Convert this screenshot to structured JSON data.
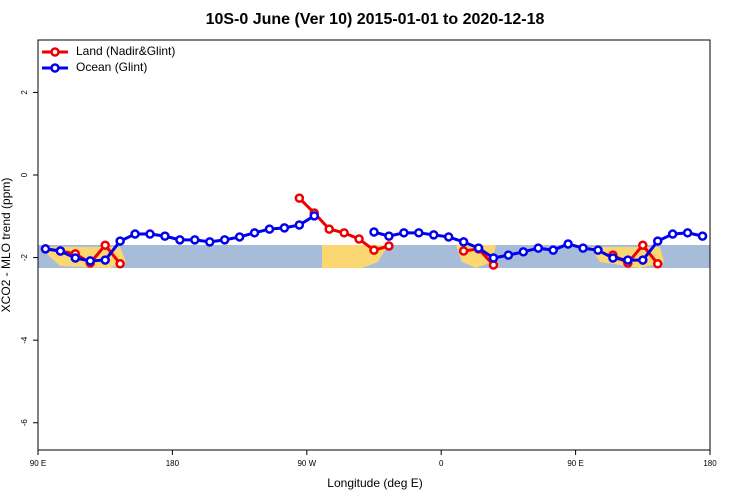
{
  "chart_data": {
    "type": "line",
    "title": "10S-0 June (Ver 10)   2015-01-01 to 2020-12-18",
    "x_label": "Longitude (deg E)",
    "y_label": "XCO2 - MLO trend (ppm)",
    "xlim": [
      90,
      540
    ],
    "ylim": [
      -6.66,
      3.27
    ],
    "xticks": [
      {
        "value": 90,
        "label": "90 E"
      },
      180,
      {
        "value": 270,
        "label": "90 W"
      },
      {
        "value": 360,
        "label": "0"
      },
      {
        "value": 450,
        "label": "90 E"
      },
      180
    ],
    "yticks": [
      2,
      0,
      -2,
      -4,
      -6
    ],
    "legend": "top-left",
    "series": [
      {
        "name": "Land (Nadir&Glint)",
        "color": "#ee0000",
        "x": [
          95,
          105,
          115,
          125,
          135,
          145,
          200,
          265,
          275,
          285,
          295,
          305,
          315,
          325,
          350,
          375,
          385,
          395,
          430,
          475,
          485,
          495,
          505
        ],
        "values": [
          -1.79,
          -1.84,
          -1.91,
          -2.13,
          -1.7,
          -2.15,
          null,
          -0.56,
          -0.92,
          -1.31,
          -1.4,
          -1.55,
          -1.82,
          -1.72,
          null,
          -1.84,
          -1.79,
          -2.18,
          null,
          -1.94,
          -2.13,
          -1.7,
          -2.15
        ]
      },
      {
        "name": "Ocean (Glint)",
        "color": "#0000ee",
        "x": [
          95,
          105,
          115,
          125,
          135,
          145,
          155,
          165,
          175,
          185,
          195,
          205,
          215,
          225,
          235,
          245,
          255,
          265,
          275,
          295,
          315,
          325,
          335,
          345,
          355,
          365,
          375,
          385,
          395,
          405,
          415,
          425,
          435,
          445,
          455,
          465,
          475,
          485,
          495,
          505,
          515,
          525,
          535
        ],
        "values": [
          -1.79,
          -1.84,
          -2.01,
          -2.08,
          -2.06,
          -1.6,
          -1.43,
          -1.43,
          -1.48,
          -1.57,
          -1.57,
          -1.62,
          -1.57,
          -1.5,
          -1.4,
          -1.31,
          -1.28,
          -1.21,
          -0.99,
          null,
          -1.38,
          -1.48,
          -1.4,
          -1.4,
          -1.45,
          -1.5,
          -1.62,
          -1.77,
          -2.01,
          -1.94,
          -1.86,
          -1.77,
          -1.82,
          -1.67,
          -1.77,
          -1.82,
          -2.01,
          -2.06,
          -2.06,
          -1.6,
          -1.43,
          -1.4,
          -1.48
        ]
      }
    ]
  }
}
